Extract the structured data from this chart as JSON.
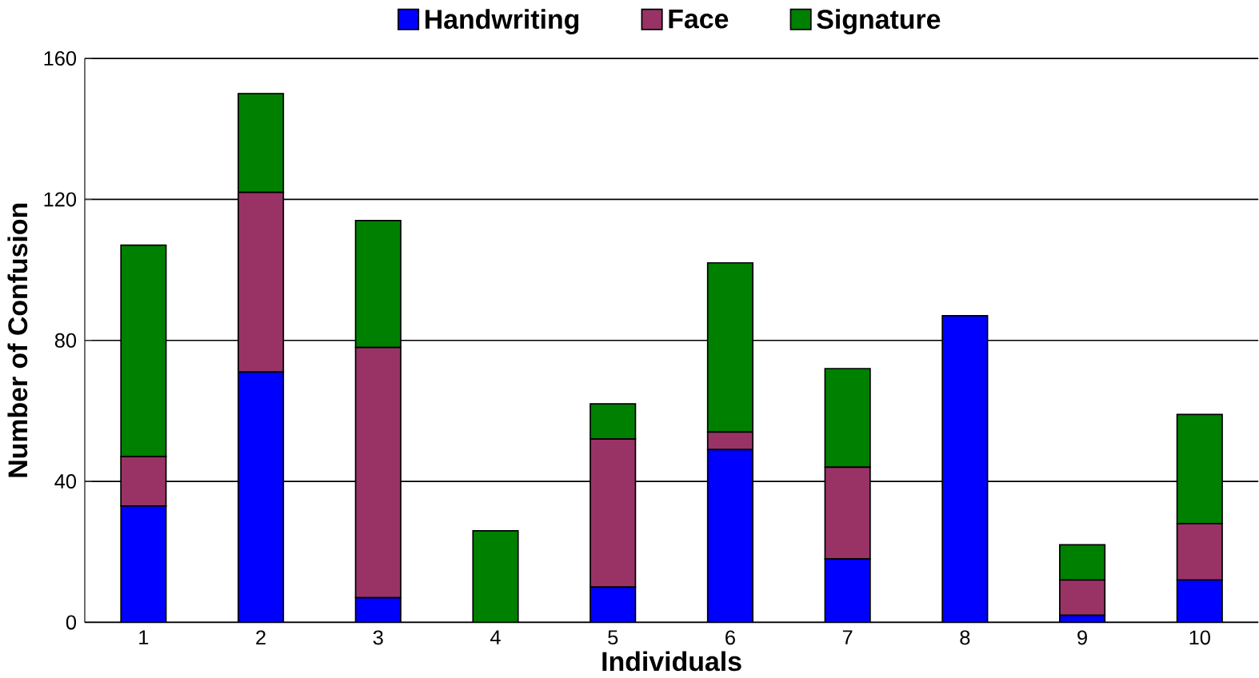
{
  "chart_data": {
    "type": "bar",
    "stacked": true,
    "xlabel": "Individuals",
    "ylabel": "Number of Confusion",
    "categories": [
      "1",
      "2",
      "3",
      "4",
      "5",
      "6",
      "7",
      "8",
      "9",
      "10"
    ],
    "series": [
      {
        "name": "Handwriting",
        "color": "#0000ff",
        "values": [
          33,
          71,
          7,
          0,
          10,
          49,
          18,
          87,
          2,
          12
        ]
      },
      {
        "name": "Face",
        "color": "#993366",
        "values": [
          14,
          51,
          71,
          0,
          42,
          5,
          26,
          0,
          10,
          16
        ]
      },
      {
        "name": "Signature",
        "color": "#008000",
        "values": [
          60,
          28,
          36,
          26,
          10,
          48,
          28,
          0,
          10,
          31
        ]
      }
    ],
    "ylim": [
      0,
      160
    ],
    "yticks": [
      0,
      40,
      80,
      120,
      160
    ],
    "grid": "y",
    "legend": "top"
  }
}
